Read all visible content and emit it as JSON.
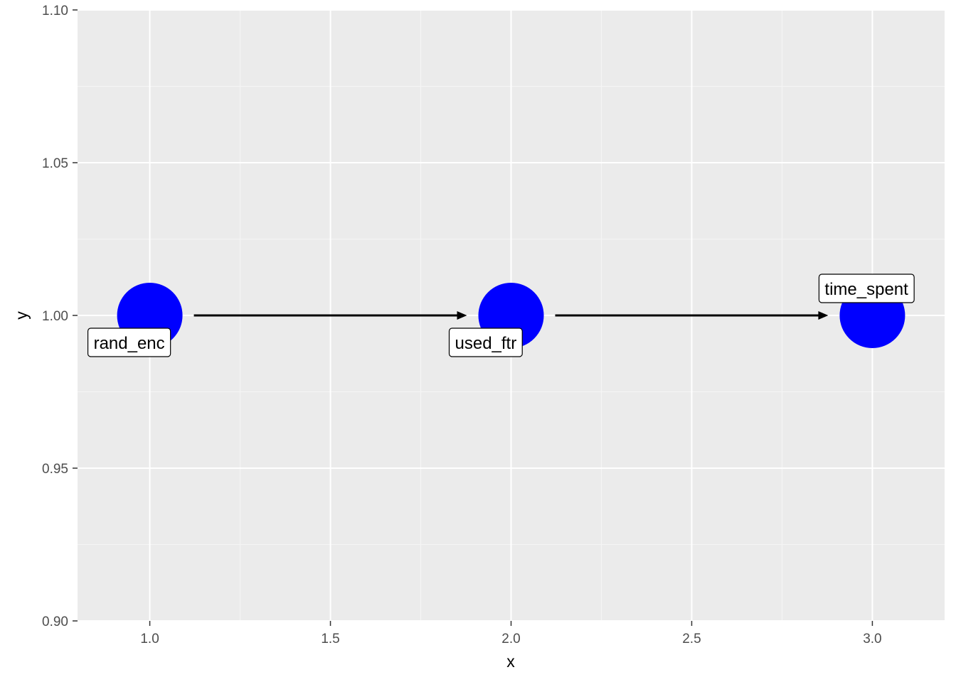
{
  "chart_data": {
    "type": "scatter",
    "title": "",
    "xlabel": "x",
    "ylabel": "y",
    "xlim": [
      0.8,
      3.2
    ],
    "ylim": [
      0.9,
      1.1
    ],
    "x_ticks": [
      1.0,
      1.5,
      2.0,
      2.5,
      3.0
    ],
    "x_tick_labels": [
      "1.0",
      "1.5",
      "2.0",
      "2.5",
      "3.0"
    ],
    "y_ticks": [
      0.9,
      0.95,
      1.0,
      1.05,
      1.1
    ],
    "y_tick_labels": [
      "0.90",
      "0.95",
      "1.00",
      "1.05",
      "1.10"
    ],
    "grid": true,
    "nodes": [
      {
        "name": "rand_enc",
        "x": 1,
        "y": 1,
        "label_side": "below-left"
      },
      {
        "name": "used_ftr",
        "x": 2,
        "y": 1,
        "label_side": "below-left"
      },
      {
        "name": "time_spent",
        "x": 3,
        "y": 1,
        "label_side": "above"
      }
    ],
    "edges": [
      {
        "from": "rand_enc",
        "to": "used_ftr"
      },
      {
        "from": "used_ftr",
        "to": "time_spent"
      }
    ]
  },
  "colors": {
    "panel_background": "#ebebeb",
    "grid_major": "#ffffff",
    "grid_minor": "#f5f5f5",
    "node_fill": "#0000ff",
    "edge": "#000000",
    "label_background": "#ffffff",
    "tick": "#333333"
  }
}
